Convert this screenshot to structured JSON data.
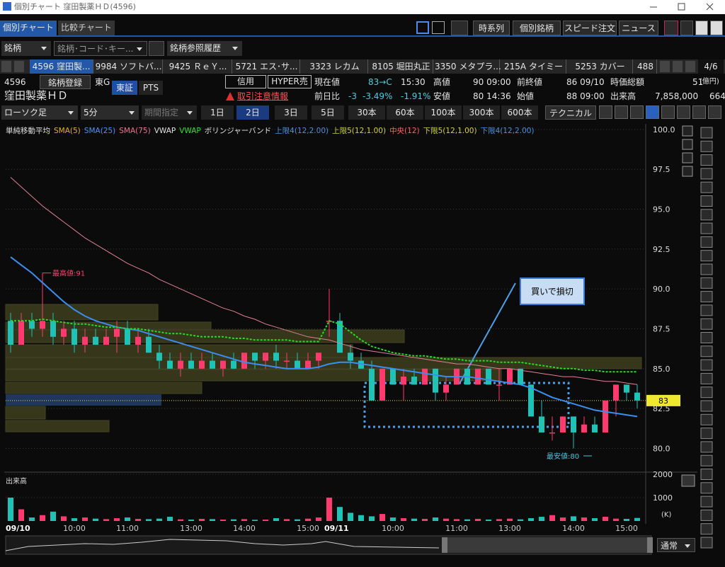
{
  "window": {
    "title": "個別チャート 窪田製薬ＨＤ(4596)"
  },
  "tabs": [
    "個別チャート",
    "比較チャート"
  ],
  "top_buttons": [
    "時系列",
    "個別銘柄",
    "スピード注文",
    "ニュース"
  ],
  "search": {
    "mode": "銘柄",
    "placeholder": "銘柄･コード･キー...",
    "history": "銘柄参照履歴"
  },
  "ticker_tabs": [
    "4596 窪田製...",
    "9984 ソフトバ...",
    "9425 ＲｅＹ...",
    "5721 エス･サ...",
    "3323 レカム",
    "8105 堀田丸正",
    "3350 メタプラ...",
    "215A タイミー",
    "5253 カバー",
    "488"
  ],
  "tab_page": "4/6",
  "info": {
    "code": "4596",
    "register": "銘柄登録",
    "market": "東G",
    "exchange": "東証",
    "pts": "PTS",
    "name": "窪田製薬ＨＤ",
    "credit": "信用",
    "hyper": "HYPER売",
    "warning": "取引注意情報",
    "price_label": "現在値",
    "price": "83→C",
    "price_time": "15:30",
    "change_label": "前日比",
    "change": "-3",
    "change_pct": "-3.49%",
    "change_pct2": "-1.91%",
    "high_label": "高値",
    "high": "90 09:00",
    "low_label": "安値",
    "low": "80 14:36",
    "prev_label": "前終値",
    "prev": "86 09/10",
    "open_label": "始値",
    "open": "88 09:00",
    "cap_label": "時価総額",
    "cap": "51",
    "cap_unit": "(億円)",
    "volume_label": "出来高",
    "volume": "7,858,000",
    "extra": "664"
  },
  "toolbar": {
    "chart_type": "ローソク足",
    "interval": "5分",
    "period": "期間指定",
    "ranges": [
      "1日",
      "2日",
      "3日",
      "5日",
      "30本",
      "60本",
      "100本",
      "300本",
      "600本"
    ],
    "active_range": "2日",
    "technical": "テクニカル"
  },
  "legend": [
    {
      "text": "単純移動平均",
      "color": "#e0e0e0"
    },
    {
      "text": "SMA(5)",
      "color": "#e8b020"
    },
    {
      "text": "SMA(25)",
      "color": "#4a90ff"
    },
    {
      "text": "SMA(75)",
      "color": "#f07090"
    },
    {
      "text": "VWAP",
      "color": "#e0e0e0"
    },
    {
      "text": "VWAP",
      "color": "#30e030"
    },
    {
      "text": "ボリンジャーバンド",
      "color": "#e0e0e0"
    },
    {
      "text": "上限4(12,2.00)",
      "color": "#4a90e0"
    },
    {
      "text": "上限5(12,1.00)",
      "color": "#d0d040"
    },
    {
      "text": "中央(12)",
      "color": "#ff6060"
    },
    {
      "text": "下限5(12,1.00)",
      "color": "#d0d040"
    },
    {
      "text": "下限4(12,2.00)",
      "color": "#4a90e0"
    }
  ],
  "chart": {
    "type": "candlestick",
    "ylim": [
      78.6,
      100.35
    ],
    "yticks": [
      {
        "value": 100,
        "label": "100.0"
      },
      97.5,
      {
        "value": 95,
        "label": "95.0"
      },
      92.5,
      {
        "value": 90,
        "label": "90.0"
      },
      87.5,
      {
        "value": 85,
        "label": "85.0"
      },
      82.5,
      {
        "value": 80,
        "label": "80.0"
      }
    ],
    "grid": true,
    "up_color": "#ff3a6e",
    "down_color": "#1fc2b4",
    "categories": [
      "09/10",
      null,
      null,
      null,
      null,
      null,
      "10:00",
      null,
      null,
      null,
      null,
      "11:00",
      null,
      null,
      null,
      null,
      null,
      "13:00",
      null,
      null,
      null,
      null,
      "14:00",
      null,
      null,
      null,
      null,
      null,
      "15:00",
      null,
      "09/11",
      null,
      null,
      null,
      null,
      null,
      "10:00",
      null,
      null,
      null,
      null,
      null,
      "11:00",
      null,
      null,
      null,
      null,
      "13:00",
      null,
      null,
      null,
      null,
      null,
      "14:00",
      null,
      null,
      null,
      null,
      "15:00",
      null
    ],
    "ohlc": [
      [
        88,
        88.5,
        86,
        86.5
      ],
      [
        86.5,
        88.5,
        86.5,
        88
      ],
      [
        88,
        88.5,
        87,
        87.5
      ],
      [
        87.5,
        91,
        87,
        88
      ],
      [
        88,
        88.5,
        86.5,
        87
      ],
      [
        87,
        88,
        86.5,
        87.5
      ],
      [
        87.5,
        88,
        86,
        86.5
      ],
      [
        86.5,
        87.5,
        86,
        87
      ],
      [
        87,
        87.5,
        86.5,
        86.5
      ],
      [
        86.5,
        87.5,
        86.5,
        87
      ],
      [
        87,
        88,
        86,
        87.5
      ],
      [
        87.5,
        88,
        86.5,
        86.5
      ],
      [
        86.5,
        87.5,
        86,
        87
      ],
      [
        87,
        87.5,
        86,
        86
      ],
      [
        86,
        86.5,
        85,
        85.5
      ],
      [
        85.5,
        86,
        85,
        85
      ],
      [
        85,
        86,
        84.5,
        85.5
      ],
      [
        85.5,
        86,
        85,
        85
      ],
      [
        85,
        86,
        85,
        85.5
      ],
      [
        85.5,
        86,
        85,
        85
      ],
      [
        85,
        85.5,
        84.5,
        85.5
      ],
      [
        85.5,
        86,
        85,
        85
      ],
      [
        85,
        86,
        85,
        86
      ],
      [
        86,
        86,
        85,
        85.5
      ],
      [
        85.5,
        86,
        85,
        86
      ],
      [
        86,
        86.5,
        85,
        85.5
      ],
      [
        85.5,
        86,
        85,
        85.5
      ],
      [
        85.5,
        86,
        85,
        85
      ],
      [
        85,
        86,
        85,
        85.5
      ],
      [
        85.5,
        86,
        85,
        86
      ],
      [
        88,
        90,
        87,
        88
      ],
      [
        88,
        88.5,
        86,
        86
      ],
      [
        86,
        86.5,
        85,
        85.5
      ],
      [
        85.5,
        86,
        85,
        85
      ],
      [
        85,
        85.5,
        83,
        83
      ],
      [
        83,
        85,
        83,
        85
      ],
      [
        85,
        85,
        84,
        84
      ],
      [
        84,
        85,
        83,
        84.5
      ],
      [
        84.5,
        85,
        84,
        84
      ],
      [
        84,
        85,
        84,
        85
      ],
      [
        85,
        85,
        83,
        83.5
      ],
      [
        83.5,
        84.5,
        83,
        84
      ],
      [
        84,
        85,
        84,
        85
      ],
      [
        85,
        85,
        84,
        84
      ],
      [
        84,
        85,
        84,
        85
      ],
      [
        85,
        85,
        84,
        84
      ],
      [
        84,
        85,
        83,
        84
      ],
      [
        84,
        85,
        84,
        85
      ],
      [
        85,
        85,
        84,
        84
      ],
      [
        84,
        84,
        82,
        82
      ],
      [
        82,
        83,
        81,
        81
      ],
      [
        81,
        82,
        80.5,
        81
      ],
      [
        81,
        82,
        81,
        82
      ],
      [
        82,
        82,
        80,
        81
      ],
      [
        81,
        82,
        81,
        81.5
      ],
      [
        81.5,
        82,
        81,
        81
      ],
      [
        81,
        83,
        81,
        83
      ],
      [
        83,
        84,
        82,
        84
      ],
      [
        84,
        84,
        83,
        83.5
      ],
      [
        83.5,
        84,
        82.5,
        83
      ]
    ],
    "series": [
      {
        "name": "SMA(25)",
        "color": "#3a8ef0",
        "width": 2,
        "values": [
          92,
          91.5,
          91,
          90.4,
          89.8,
          89.2,
          88.7,
          88.3,
          88,
          87.8,
          87.6,
          87.5,
          87.4,
          87.2,
          87,
          86.8,
          86.6,
          86.4,
          86.2,
          86,
          85.8,
          85.6,
          85.4,
          85.3,
          85.2,
          85.1,
          85,
          85,
          85,
          85.1,
          85.3,
          85.4,
          85.4,
          85.3,
          85.2,
          85.1,
          85,
          84.9,
          84.8,
          84.7,
          84.6,
          84.5,
          84.5,
          84.5,
          84.4,
          84.3,
          84.2,
          84.1,
          84,
          83.8,
          83.5,
          83.2,
          83,
          82.8,
          82.6,
          82.4,
          82.3,
          82.2,
          82.1,
          82
        ]
      },
      {
        "name": "SMA(75)",
        "color": "#e08090",
        "width": 1,
        "values": [
          97,
          96.4,
          95.8,
          95.2,
          94.7,
          94.2,
          93.7,
          93.2,
          92.8,
          92.4,
          92,
          91.6,
          91.3,
          91,
          90.6,
          90.3,
          90,
          89.7,
          89.4,
          89.1,
          88.8,
          88.6,
          88.3,
          88.1,
          87.8,
          87.6,
          87.4,
          87.2,
          87,
          86.9,
          86.8,
          86.6,
          86.4,
          86.2,
          86.1,
          86,
          85.9,
          85.8,
          85.7,
          85.6,
          85.5,
          85.4,
          85.3,
          85.3,
          85.2,
          85.1,
          85,
          85,
          84.9,
          84.8,
          84.7,
          84.6,
          84.5,
          84.5,
          84.4,
          84.3,
          84.2,
          84.2,
          84.1,
          84
        ]
      },
      {
        "name": "VWAP",
        "color": "#20e020",
        "width": 2,
        "dash": true,
        "values": [
          88,
          88,
          88,
          88.1,
          88,
          87.9,
          87.8,
          87.8,
          87.7,
          87.6,
          87.6,
          87.5,
          87.5,
          87.4,
          87.3,
          87.2,
          87.2,
          87.1,
          87,
          87,
          87,
          86.9,
          86.9,
          86.8,
          86.8,
          86.8,
          86.8,
          86.7,
          86.7,
          86.7,
          88,
          87.8,
          87.3,
          86.8,
          86.4,
          86.2,
          86,
          85.9,
          85.8,
          85.8,
          85.7,
          85.6,
          85.6,
          85.5,
          85.5,
          85.5,
          85.4,
          85.4,
          85.4,
          85.3,
          85.2,
          85.1,
          85,
          85,
          84.9,
          84.9,
          84.8,
          84.8,
          84.8,
          84.8
        ]
      }
    ],
    "current_price": 83,
    "annotations": {
      "high": "最高値:91",
      "low": "最安値:80",
      "note": "買いで損切"
    }
  },
  "volume": {
    "label": "出来高",
    "unit": "(K)",
    "ylim": [
      0,
      2000
    ],
    "yticks": [
      1000,
      2000
    ],
    "values": [
      1000,
      500,
      150,
      250,
      400,
      200,
      120,
      150,
      100,
      80,
      120,
      150,
      90,
      80,
      100,
      180,
      70,
      60,
      90,
      80,
      60,
      70,
      80,
      50,
      60,
      120,
      80,
      70,
      100,
      150,
      1000,
      600,
      350,
      250,
      200,
      300,
      150,
      120,
      100,
      90,
      150,
      100,
      80,
      70,
      90,
      60,
      80,
      100,
      70,
      120,
      180,
      250,
      150,
      200,
      150,
      120,
      180,
      100,
      90,
      130
    ]
  },
  "footer": {
    "mode": "通常"
  }
}
